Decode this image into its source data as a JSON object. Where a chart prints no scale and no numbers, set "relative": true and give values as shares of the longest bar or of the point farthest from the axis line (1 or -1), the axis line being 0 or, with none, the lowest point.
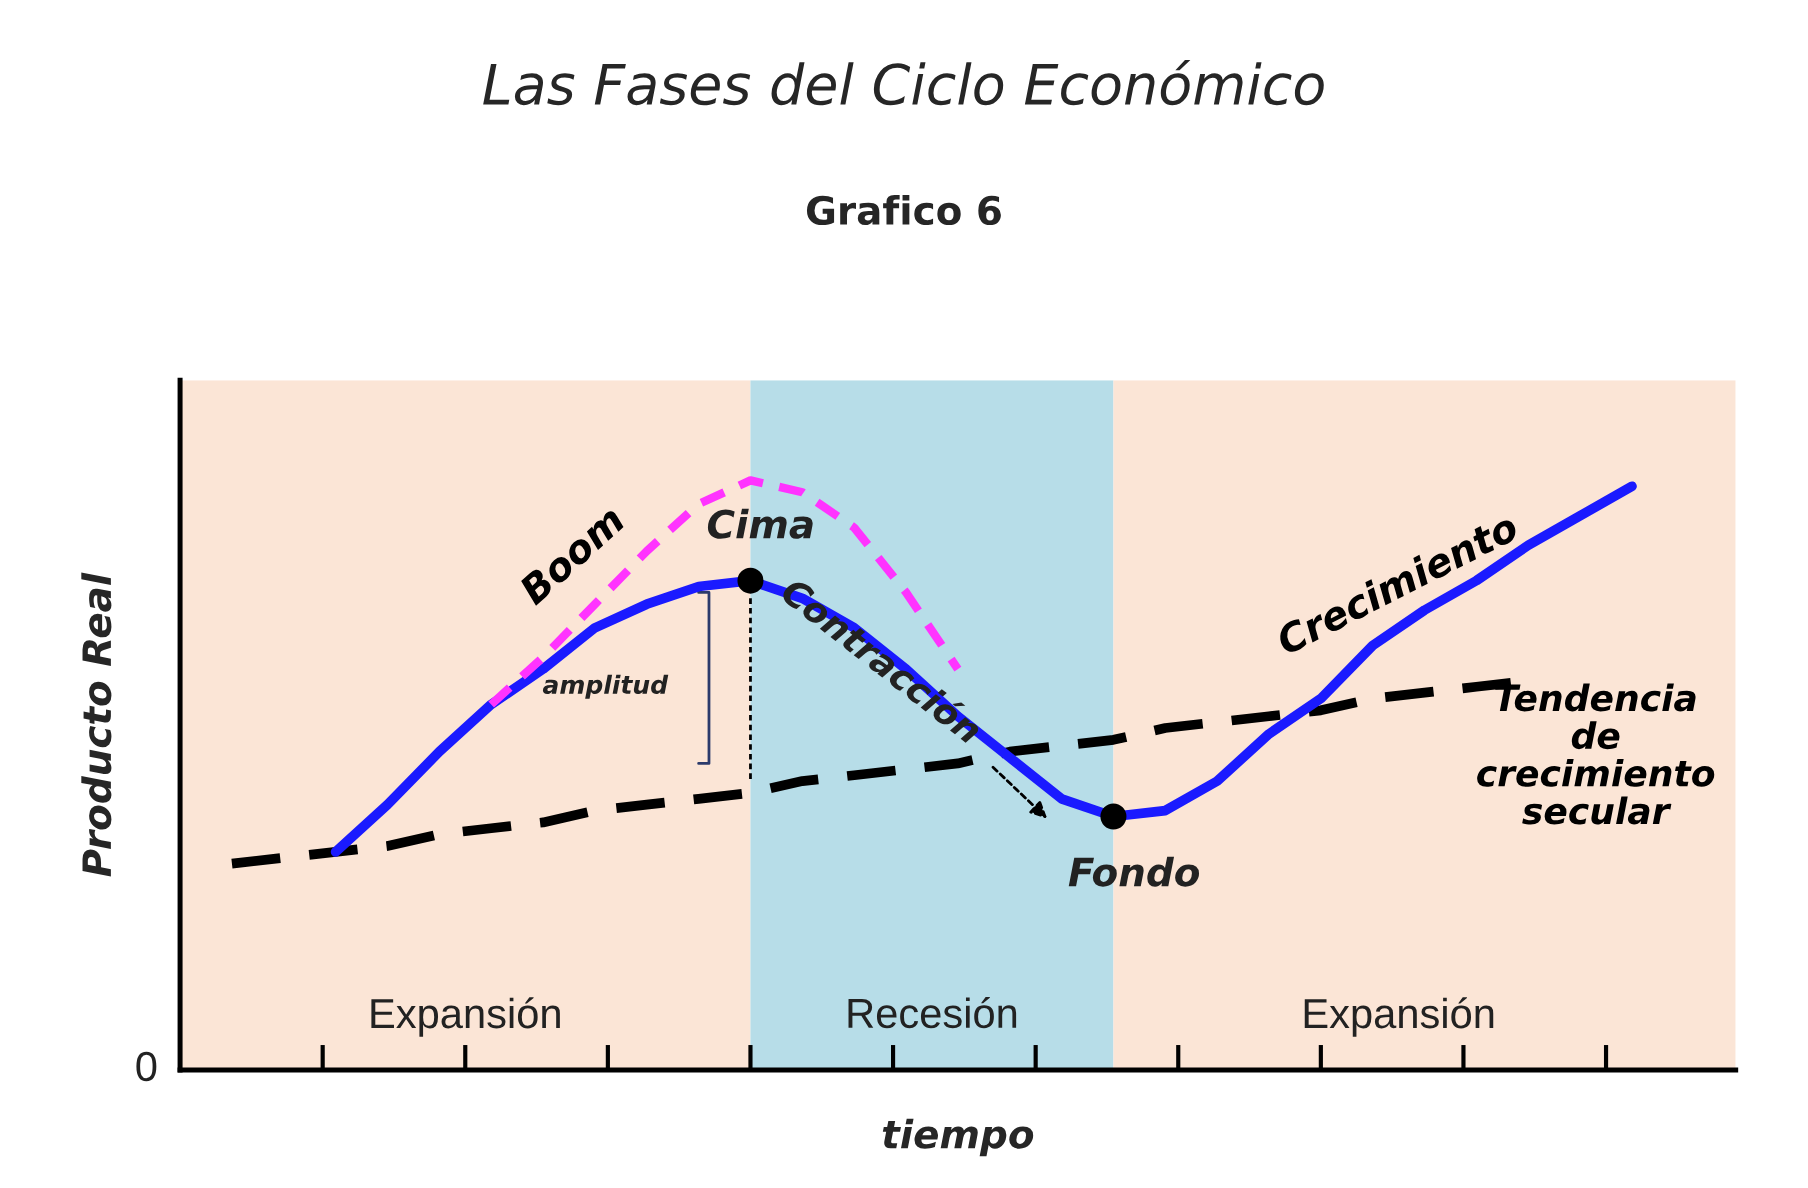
{
  "chart_data": {
    "type": "line",
    "title": "Las Fases del Ciclo Económico",
    "subtitle": "Grafico 6",
    "xlabel": "tiempo",
    "ylabel": "Producto Real",
    "relative": true,
    "legend": false,
    "grid": false,
    "categories": [
      null,
      null,
      null,
      null,
      null,
      null,
      null,
      null,
      null,
      null,
      null,
      null,
      null,
      null,
      null,
      null,
      null,
      null,
      null,
      null,
      null,
      null,
      null,
      null,
      null,
      null,
      null,
      null,
      null,
      null,
      null
    ],
    "series": [
      {
        "name": "Crecimiento",
        "color": "#1a1aff",
        "line_style": "solid",
        "values": [
          null,
          null,
          null,
          0.37,
          0.45,
          0.54,
          0.62,
          0.68,
          0.75,
          0.79,
          0.82,
          0.83,
          0.8,
          0.75,
          0.68,
          0.6,
          0.53,
          0.46,
          0.43,
          0.44,
          0.49,
          0.57,
          0.63,
          0.72,
          0.78,
          0.83,
          0.89,
          0.94,
          0.99,
          null,
          null
        ]
      },
      {
        "name": "Boom",
        "color": "#ff33ff",
        "line_style": "dashed",
        "values": [
          null,
          null,
          null,
          null,
          null,
          null,
          0.62,
          0.7,
          0.79,
          0.88,
          0.96,
          1.0,
          0.98,
          0.92,
          0.81,
          0.68,
          null,
          null,
          null,
          null,
          null,
          null,
          null,
          null,
          null,
          null,
          null,
          null,
          null,
          null,
          null
        ]
      },
      {
        "name": "Tendencia\nde\ncrecimiento\nsecular",
        "color": "#000000",
        "line_style": "dashed",
        "values": [
          null,
          0.35,
          0.36,
          0.37,
          0.38,
          0.4,
          0.41,
          0.42,
          0.44,
          0.45,
          0.46,
          0.47,
          0.49,
          0.5,
          0.51,
          0.52,
          0.54,
          0.55,
          0.56,
          0.58,
          0.59,
          0.6,
          0.61,
          0.63,
          0.64,
          0.65,
          0.66,
          null,
          null,
          null,
          null
        ]
      }
    ],
    "annotations": [
      "Cima",
      "Fondo",
      "Contracción",
      "amplitud",
      "0",
      "Expansión",
      "Recesión",
      "Expansión"
    ]
  }
}
